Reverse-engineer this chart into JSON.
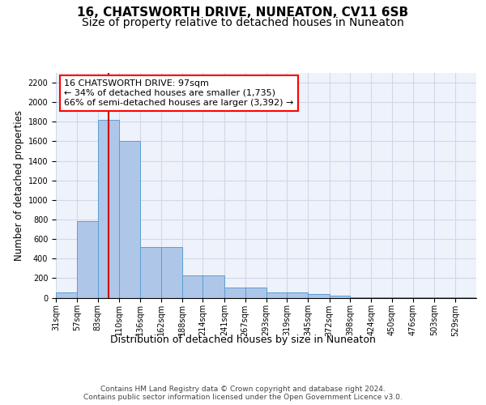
{
  "title": "16, CHATSWORTH DRIVE, NUNEATON, CV11 6SB",
  "subtitle": "Size of property relative to detached houses in Nuneaton",
  "xlabel": "Distribution of detached houses by size in Nuneaton",
  "ylabel": "Number of detached properties",
  "bar_edges": [
    31,
    57,
    83,
    110,
    136,
    162,
    188,
    214,
    241,
    267,
    293,
    319,
    345,
    372,
    398,
    424,
    450,
    476,
    503,
    529,
    555
  ],
  "bar_heights": [
    50,
    780,
    1820,
    1600,
    520,
    520,
    230,
    230,
    105,
    105,
    55,
    55,
    35,
    20,
    5,
    5,
    2,
    2,
    2,
    2
  ],
  "bar_color": "#aec6e8",
  "bar_edgecolor": "#5a9fd4",
  "vline_x": 97,
  "vline_color": "#cc0000",
  "annotation_text": "16 CHATSWORTH DRIVE: 97sqm\n← 34% of detached houses are smaller (1,735)\n66% of semi-detached houses are larger (3,392) →",
  "ylim": [
    0,
    2300
  ],
  "yticks": [
    0,
    200,
    400,
    600,
    800,
    1000,
    1200,
    1400,
    1600,
    1800,
    2000,
    2200
  ],
  "grid_color": "#d0d8e8",
  "background_color": "#eef2fb",
  "footer_text": "Contains HM Land Registry data © Crown copyright and database right 2024.\nContains public sector information licensed under the Open Government Licence v3.0.",
  "title_fontsize": 11,
  "subtitle_fontsize": 10,
  "xlabel_fontsize": 9,
  "ylabel_fontsize": 8.5,
  "tick_fontsize": 7,
  "annotation_fontsize": 8,
  "footer_fontsize": 6.5
}
